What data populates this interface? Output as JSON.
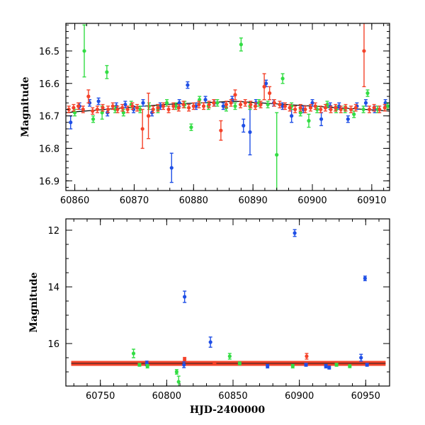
{
  "colors": {
    "blue": "#1f4fe6",
    "green": "#33dd44",
    "red": "#f4432a",
    "trend": "#000000"
  },
  "chart_data": [
    {
      "type": "scatter",
      "ylabel": "Magnitude",
      "xlim": [
        60858.5,
        60913
      ],
      "ylim": [
        16.93,
        16.415
      ],
      "y_inverted": true,
      "xticks": [
        60860,
        60870,
        60880,
        60890,
        60900,
        60910
      ],
      "yticks": [
        16.5,
        16.6,
        16.7,
        16.8,
        16.9
      ],
      "trend_line": {
        "x": [
          60858.5,
          60875,
          60887,
          60913
        ],
        "y": [
          16.69,
          16.665,
          16.655,
          16.685
        ]
      },
      "series": [
        {
          "color": "blue",
          "points": [
            [
              60859.3,
              16.72,
              0.02
            ],
            [
              60860.8,
              16.67,
              0.01
            ],
            [
              60862.5,
              16.66,
              0.01
            ],
            [
              60864.0,
              16.655,
              0.01
            ],
            [
              60865.5,
              16.69,
              0.01
            ],
            [
              60867.0,
              16.67,
              0.01
            ],
            [
              60868.5,
              16.665,
              0.01
            ],
            [
              60869.9,
              16.68,
              0.01
            ],
            [
              60871.5,
              16.66,
              0.01
            ],
            [
              60873.0,
              16.69,
              0.01
            ],
            [
              60874.4,
              16.67,
              0.01
            ],
            [
              60876.3,
              16.86,
              0.045
            ],
            [
              60877.6,
              16.66,
              0.01
            ],
            [
              60879.0,
              16.605,
              0.01
            ],
            [
              60880.4,
              16.67,
              0.01
            ],
            [
              60882.0,
              16.65,
              0.01
            ],
            [
              60883.5,
              16.66,
              0.01
            ],
            [
              60885.0,
              16.67,
              0.01
            ],
            [
              60886.5,
              16.65,
              0.01
            ],
            [
              60888.4,
              16.73,
              0.02
            ],
            [
              60889.5,
              16.75,
              0.07
            ],
            [
              60890.5,
              16.66,
              0.01
            ],
            [
              60892.2,
              16.6,
              0.01
            ],
            [
              60893.5,
              16.66,
              0.01
            ],
            [
              60895.0,
              16.67,
              0.01
            ],
            [
              60896.5,
              16.7,
              0.02
            ],
            [
              60898.5,
              16.68,
              0.01
            ],
            [
              60900.0,
              16.66,
              0.01
            ],
            [
              60901.5,
              16.71,
              0.02
            ],
            [
              60903.0,
              16.67,
              0.01
            ],
            [
              60904.5,
              16.67,
              0.01
            ],
            [
              60906.0,
              16.71,
              0.01
            ],
            [
              60907.5,
              16.67,
              0.01
            ],
            [
              60909.0,
              16.66,
              0.01
            ],
            [
              60910.5,
              16.68,
              0.01
            ],
            [
              60912.3,
              16.66,
              0.01
            ]
          ]
        },
        {
          "color": "green",
          "points": [
            [
              60860.0,
              16.69,
              0.01
            ],
            [
              60861.6,
              16.5,
              0.08
            ],
            [
              60863.1,
              16.71,
              0.01
            ],
            [
              60864.6,
              16.69,
              0.02
            ],
            [
              60865.4,
              16.565,
              0.02
            ],
            [
              60866.8,
              16.68,
              0.01
            ],
            [
              60868.2,
              16.69,
              0.01
            ],
            [
              60869.5,
              16.665,
              0.01
            ],
            [
              60871.0,
              16.68,
              0.01
            ],
            [
              60872.5,
              16.67,
              0.01
            ],
            [
              60874.0,
              16.68,
              0.01
            ],
            [
              60875.5,
              16.66,
              0.01
            ],
            [
              60877.0,
              16.67,
              0.01
            ],
            [
              60878.5,
              16.665,
              0.01
            ],
            [
              60879.6,
              16.735,
              0.01
            ],
            [
              60881.0,
              16.65,
              0.01
            ],
            [
              60882.5,
              16.67,
              0.01
            ],
            [
              60884.0,
              16.66,
              0.01
            ],
            [
              60885.5,
              16.675,
              0.01
            ],
            [
              60887.0,
              16.67,
              0.01
            ],
            [
              60888.0,
              16.48,
              0.02
            ],
            [
              60889.5,
              16.67,
              0.01
            ],
            [
              60891.0,
              16.66,
              0.01
            ],
            [
              60892.5,
              16.665,
              0.01
            ],
            [
              60894.0,
              16.82,
              0.13
            ],
            [
              60895.0,
              16.585,
              0.015
            ],
            [
              60896.5,
              16.67,
              0.01
            ],
            [
              60898.0,
              16.69,
              0.01
            ],
            [
              60899.4,
              16.715,
              0.02
            ],
            [
              60900.8,
              16.68,
              0.01
            ],
            [
              60902.5,
              16.665,
              0.01
            ],
            [
              60904.0,
              16.68,
              0.01
            ],
            [
              60905.5,
              16.68,
              0.01
            ],
            [
              60907.0,
              16.695,
              0.01
            ],
            [
              60908.6,
              16.68,
              0.01
            ],
            [
              60909.3,
              16.63,
              0.01
            ],
            [
              60911.0,
              16.68,
              0.01
            ],
            [
              60912.7,
              16.67,
              0.01
            ]
          ]
        },
        {
          "color": "red",
          "points": [
            [
              60859.0,
              16.68,
              0.01
            ],
            [
              60859.8,
              16.675,
              0.01
            ],
            [
              60860.6,
              16.67,
              0.01
            ],
            [
              60861.4,
              16.68,
              0.01
            ],
            [
              60862.3,
              16.64,
              0.02
            ],
            [
              60863.0,
              16.685,
              0.01
            ],
            [
              60863.8,
              16.68,
              0.01
            ],
            [
              60864.7,
              16.675,
              0.01
            ],
            [
              60865.6,
              16.68,
              0.01
            ],
            [
              60866.4,
              16.67,
              0.01
            ],
            [
              60867.2,
              16.68,
              0.01
            ],
            [
              60868.0,
              16.675,
              0.01
            ],
            [
              60868.9,
              16.68,
              0.01
            ],
            [
              60869.7,
              16.67,
              0.01
            ],
            [
              60870.5,
              16.675,
              0.01
            ],
            [
              60871.4,
              16.74,
              0.06
            ],
            [
              60872.4,
              16.7,
              0.07
            ],
            [
              60873.2,
              16.68,
              0.01
            ],
            [
              60874.0,
              16.675,
              0.01
            ],
            [
              60874.9,
              16.67,
              0.01
            ],
            [
              60875.8,
              16.68,
              0.01
            ],
            [
              60876.6,
              16.67,
              0.01
            ],
            [
              60877.5,
              16.675,
              0.01
            ],
            [
              60878.3,
              16.665,
              0.01
            ],
            [
              60879.2,
              16.675,
              0.01
            ],
            [
              60880.0,
              16.67,
              0.01
            ],
            [
              60880.9,
              16.665,
              0.01
            ],
            [
              60881.7,
              16.67,
              0.01
            ],
            [
              60882.6,
              16.665,
              0.01
            ],
            [
              60883.4,
              16.66,
              0.01
            ],
            [
              60884.6,
              16.745,
              0.03
            ],
            [
              60885.5,
              16.665,
              0.01
            ],
            [
              60886.3,
              16.66,
              0.01
            ],
            [
              60887.0,
              16.635,
              0.015
            ],
            [
              60887.9,
              16.665,
              0.01
            ],
            [
              60888.7,
              16.66,
              0.01
            ],
            [
              60889.6,
              16.665,
              0.01
            ],
            [
              60890.4,
              16.67,
              0.01
            ],
            [
              60891.3,
              16.665,
              0.01
            ],
            [
              60891.9,
              16.61,
              0.04
            ],
            [
              60892.8,
              16.63,
              0.02
            ],
            [
              60893.6,
              16.66,
              0.01
            ],
            [
              60894.5,
              16.665,
              0.01
            ],
            [
              60895.4,
              16.67,
              0.01
            ],
            [
              60896.2,
              16.675,
              0.01
            ],
            [
              60897.1,
              16.68,
              0.01
            ],
            [
              60898.0,
              16.675,
              0.01
            ],
            [
              60898.8,
              16.68,
              0.01
            ],
            [
              60899.7,
              16.675,
              0.01
            ],
            [
              60900.5,
              16.67,
              0.01
            ],
            [
              60901.4,
              16.68,
              0.01
            ],
            [
              60902.2,
              16.675,
              0.01
            ],
            [
              60903.1,
              16.68,
              0.01
            ],
            [
              60903.9,
              16.675,
              0.01
            ],
            [
              60904.8,
              16.68,
              0.01
            ],
            [
              60905.6,
              16.675,
              0.01
            ],
            [
              60906.5,
              16.68,
              0.01
            ],
            [
              60907.3,
              16.675,
              0.01
            ],
            [
              60908.7,
              16.5,
              0.11
            ],
            [
              60909.6,
              16.68,
              0.01
            ],
            [
              60910.4,
              16.675,
              0.01
            ],
            [
              60911.3,
              16.68,
              0.01
            ],
            [
              60912.2,
              16.675,
              0.01
            ]
          ]
        }
      ]
    },
    {
      "type": "scatter",
      "xlabel": "HJD-2400000",
      "ylabel": "Magnitude",
      "xlim": [
        60724,
        60968
      ],
      "ylim": [
        17.5,
        11.6
      ],
      "y_inverted": true,
      "xticks": [
        60750,
        60800,
        60850,
        60900,
        60950
      ],
      "yticks": [
        12,
        14,
        16
      ],
      "baseline": {
        "x": [
          60728,
          60965
        ],
        "y": 16.7
      },
      "series": [
        {
          "color": "blue",
          "points": [
            [
              60813.5,
              14.35,
              0.2
            ],
            [
              60833.0,
              15.95,
              0.18
            ],
            [
              60896.5,
              12.1,
              0.12
            ],
            [
              60949.5,
              13.7,
              0.08
            ],
            [
              60946.5,
              16.5,
              0.12
            ],
            [
              60785.0,
              16.7,
              0.08
            ],
            [
              60813.0,
              16.75,
              0.1
            ],
            [
              60876.0,
              16.8,
              0.06
            ],
            [
              60905.0,
              16.75,
              0.05
            ],
            [
              60920.0,
              16.8,
              0.06
            ],
            [
              60922.5,
              16.85,
              0.05
            ],
            [
              60951.0,
              16.75,
              0.05
            ]
          ]
        },
        {
          "color": "green",
          "points": [
            [
              60775.0,
              16.35,
              0.15
            ],
            [
              60779.5,
              16.75,
              0.05
            ],
            [
              60785.5,
              16.8,
              0.06
            ],
            [
              60807.5,
              17.0,
              0.08
            ],
            [
              60809.0,
              17.35,
              0.2
            ],
            [
              60847.5,
              16.45,
              0.1
            ],
            [
              60855.0,
              16.7,
              0.05
            ],
            [
              60895.0,
              16.8,
              0.06
            ],
            [
              60928.0,
              16.75,
              0.05
            ],
            [
              60938.0,
              16.8,
              0.05
            ]
          ]
        },
        {
          "color": "red",
          "points": [
            [
              60813.5,
              16.55,
              0.06
            ],
            [
              60836.0,
              16.7,
              0.05
            ],
            [
              60905.5,
              16.45,
              0.1
            ]
          ]
        }
      ]
    }
  ]
}
